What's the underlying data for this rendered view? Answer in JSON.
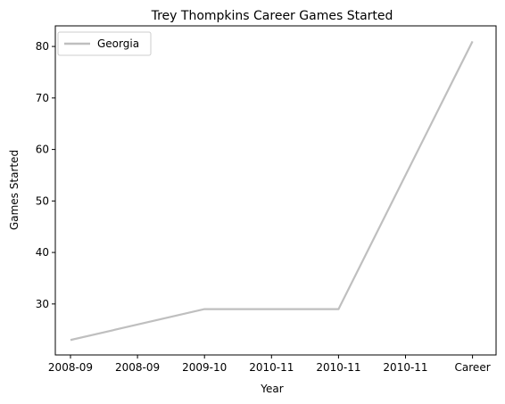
{
  "chart_data": {
    "type": "line",
    "title": "Trey Thompkins Career Games Started",
    "xlabel": "Year",
    "ylabel": "Games Started",
    "categories": [
      "2008-09",
      "2008-09",
      "2009-10",
      "2010-11",
      "2010-11",
      "2010-11",
      "Career"
    ],
    "series": [
      {
        "name": "Georgia",
        "color": "#bfbfbf",
        "points": [
          {
            "x": "2008-09",
            "y": 23
          },
          {
            "x": "2009-10",
            "y": 29
          },
          {
            "x": "2010-11",
            "y": 29
          },
          {
            "x": "Career",
            "y": 81
          }
        ]
      }
    ],
    "ylim": [
      20.1,
      84.0
    ],
    "yticks": [
      30,
      40,
      50,
      60,
      70,
      80
    ],
    "grid": false,
    "legend": "top-left"
  }
}
